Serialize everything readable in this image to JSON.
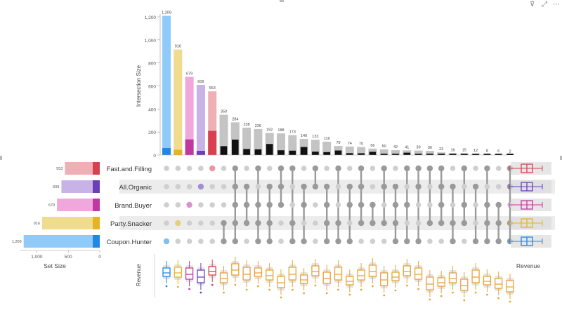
{
  "visual_header": {
    "icons": [
      "filter-icon",
      "focus-mode-icon",
      "more-options-icon"
    ],
    "filter_glyph": "⊽",
    "focus_glyph": "⤢",
    "more_glyph": "⋯"
  },
  "colors": {
    "coupon": "#1e88e5",
    "coupon_light": "#90caf9",
    "party": "#e6b422",
    "party_light": "#efdc8e",
    "brand": "#c039a3",
    "brand_light": "#f0a8dc",
    "organic": "#6a3fb8",
    "organic_light": "#c8b3e6",
    "fast": "#d84050",
    "fast_light": "#efb0b5",
    "gray_bar": "#c4c4c4",
    "black_bar": "#111111",
    "band": "#ececec",
    "inactive_dot": "#cfcfcf",
    "connector": "#9a9a9a",
    "multi_box": "#e8a33a"
  },
  "chart_data": {
    "type": "upset",
    "ylabel": "Intersection Size",
    "y_ticks": [
      "1,200",
      "1,000",
      "800",
      "600",
      "400",
      "200",
      "0"
    ],
    "ylim": [
      0,
      1200
    ],
    "set_size_label": "Set Size",
    "set_size_ticks": [
      "1,000",
      "500",
      "0"
    ],
    "box_ylabel": "Revenue",
    "set_box_label": "Revenue",
    "sets": [
      {
        "name": "Fast.and.Filling",
        "size": 553,
        "size_label": "553"
      },
      {
        "name": "All.Organic",
        "size": 609,
        "size_label": "609"
      },
      {
        "name": "Brand.Buyer",
        "size": 679,
        "size_label": "679"
      },
      {
        "name": "Party.Snacker",
        "size": 916,
        "size_label": "916"
      },
      {
        "name": "Coupon.Hunter",
        "size": 1209,
        "size_label": "1,209"
      }
    ],
    "intersections": [
      {
        "label": "1,209",
        "value": 1209,
        "sets": [
          4
        ]
      },
      {
        "label": "916",
        "value": 916,
        "sets": [
          3
        ]
      },
      {
        "label": "679",
        "value": 679,
        "sets": [
          2
        ]
      },
      {
        "label": "609",
        "value": 609,
        "sets": [
          1
        ]
      },
      {
        "label": "553",
        "value": 553,
        "sets": [
          0
        ]
      },
      {
        "label": "350",
        "value": 350,
        "sets": [
          3,
          4
        ]
      },
      {
        "label": "284",
        "value": 284,
        "sets": [
          0,
          1,
          2,
          3,
          4
        ]
      },
      {
        "label": "238",
        "value": 238,
        "sets": [
          1,
          2,
          3
        ]
      },
      {
        "label": "226",
        "value": 226,
        "sets": [
          0,
          2,
          3,
          4
        ]
      },
      {
        "label": "192",
        "value": 192,
        "sets": [
          1,
          2,
          3,
          4
        ]
      },
      {
        "label": "188",
        "value": 188,
        "sets": [
          0,
          1,
          2
        ]
      },
      {
        "label": "173",
        "value": 173,
        "sets": [
          0,
          3,
          4
        ]
      },
      {
        "label": "140",
        "value": 140,
        "sets": [
          1,
          2,
          4
        ]
      },
      {
        "label": "133",
        "value": 133,
        "sets": [
          0,
          1
        ]
      },
      {
        "label": "116",
        "value": 116,
        "sets": [
          1,
          2,
          3,
          4
        ]
      },
      {
        "label": "79",
        "value": 79,
        "sets": [
          0,
          3,
          4
        ]
      },
      {
        "label": "74",
        "value": 74,
        "sets": [
          1,
          2,
          4
        ]
      },
      {
        "label": "70",
        "value": 70,
        "sets": [
          0,
          1,
          2,
          3
        ]
      },
      {
        "label": "56",
        "value": 56,
        "sets": [
          2,
          3
        ]
      },
      {
        "label": "50",
        "value": 50,
        "sets": [
          0,
          1,
          3
        ]
      },
      {
        "label": "42",
        "value": 42,
        "sets": [
          1,
          2,
          3,
          4
        ]
      },
      {
        "label": "41",
        "value": 41,
        "sets": [
          0,
          2,
          4
        ]
      },
      {
        "label": "39",
        "value": 39,
        "sets": [
          0,
          1,
          4
        ]
      },
      {
        "label": "36",
        "value": 36,
        "sets": [
          0,
          3
        ]
      },
      {
        "label": "23",
        "value": 23,
        "sets": [
          0,
          1,
          2,
          3
        ]
      },
      {
        "label": "16",
        "value": 16,
        "sets": [
          1,
          3,
          4
        ]
      },
      {
        "label": "15",
        "value": 15,
        "sets": [
          0,
          2,
          3
        ]
      },
      {
        "label": "12",
        "value": 12,
        "sets": [
          1,
          4
        ]
      },
      {
        "label": "8",
        "value": 8,
        "sets": [
          0,
          2,
          3,
          4
        ]
      },
      {
        "label": "6",
        "value": 6,
        "sets": [
          2,
          3,
          4
        ]
      },
      {
        "label": "2",
        "value": 2,
        "sets": [
          0,
          1,
          3,
          4
        ]
      }
    ]
  }
}
